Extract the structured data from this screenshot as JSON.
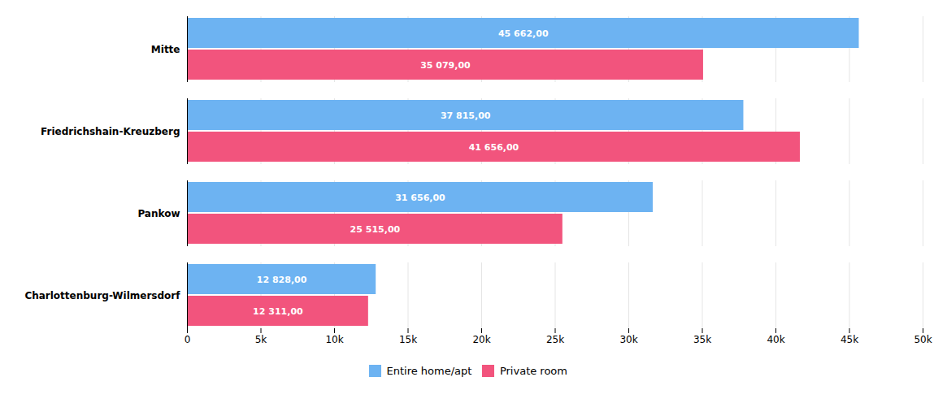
{
  "chart_data": {
    "type": "bar",
    "orientation": "horizontal",
    "categories": [
      "Mitte",
      "Friedrichshain-Kreuzberg",
      "Pankow",
      "Charlottenburg-Wilmersdorf"
    ],
    "series": [
      {
        "name": "Entire home/apt",
        "color": "#6db3f2",
        "values": [
          45662,
          37815,
          31656,
          12828
        ],
        "value_labels": [
          "45 662,00",
          "37 815,00",
          "31 656,00",
          "12 828,00"
        ]
      },
      {
        "name": "Private room",
        "color": "#f2547d",
        "values": [
          35079,
          41656,
          25515,
          12311
        ],
        "value_labels": [
          "35 079,00",
          "41 656,00",
          "25 515,00",
          "12 311,00"
        ]
      }
    ],
    "xlim": [
      0,
      50000
    ],
    "xticks": [
      0,
      {
        "value": 5000,
        "label": "5k"
      },
      {
        "value": 10000,
        "label": "10k"
      },
      {
        "value": 15000,
        "label": "15k"
      },
      {
        "value": 20000,
        "label": "20k"
      },
      {
        "value": 25000,
        "label": "25k"
      },
      {
        "value": 30000,
        "label": "30k"
      },
      {
        "value": 35000,
        "label": "35k"
      },
      {
        "value": 40000,
        "label": "40k"
      },
      {
        "value": 45000,
        "label": "45k"
      },
      {
        "value": 50000,
        "label": "50k"
      }
    ],
    "grid": true,
    "legend": "bottom",
    "data_labels": true
  }
}
